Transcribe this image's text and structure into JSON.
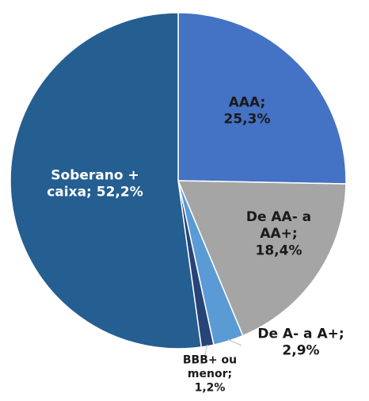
{
  "chart_data": {
    "type": "pie",
    "categories": [
      "AAA",
      "De AA- a AA+",
      "De A- a A+",
      "BBB+ ou menor",
      "Soberano + caixa"
    ],
    "values": [
      25.3,
      18.4,
      2.9,
      1.2,
      52.2
    ],
    "value_labels": [
      [
        "AAA;",
        "25,3%"
      ],
      [
        "De AA- a",
        "AA+;",
        "18,4%"
      ],
      [
        "De A- a A+;",
        "2,9%"
      ],
      [
        "BBB+ ou",
        "menor;",
        "1,2%"
      ],
      [
        "Soberano +",
        "caixa; 52,2%"
      ]
    ],
    "colors": [
      "#4472c4",
      "#a5a5a5",
      "#5b9bd5",
      "#264478",
      "#255e91"
    ]
  }
}
